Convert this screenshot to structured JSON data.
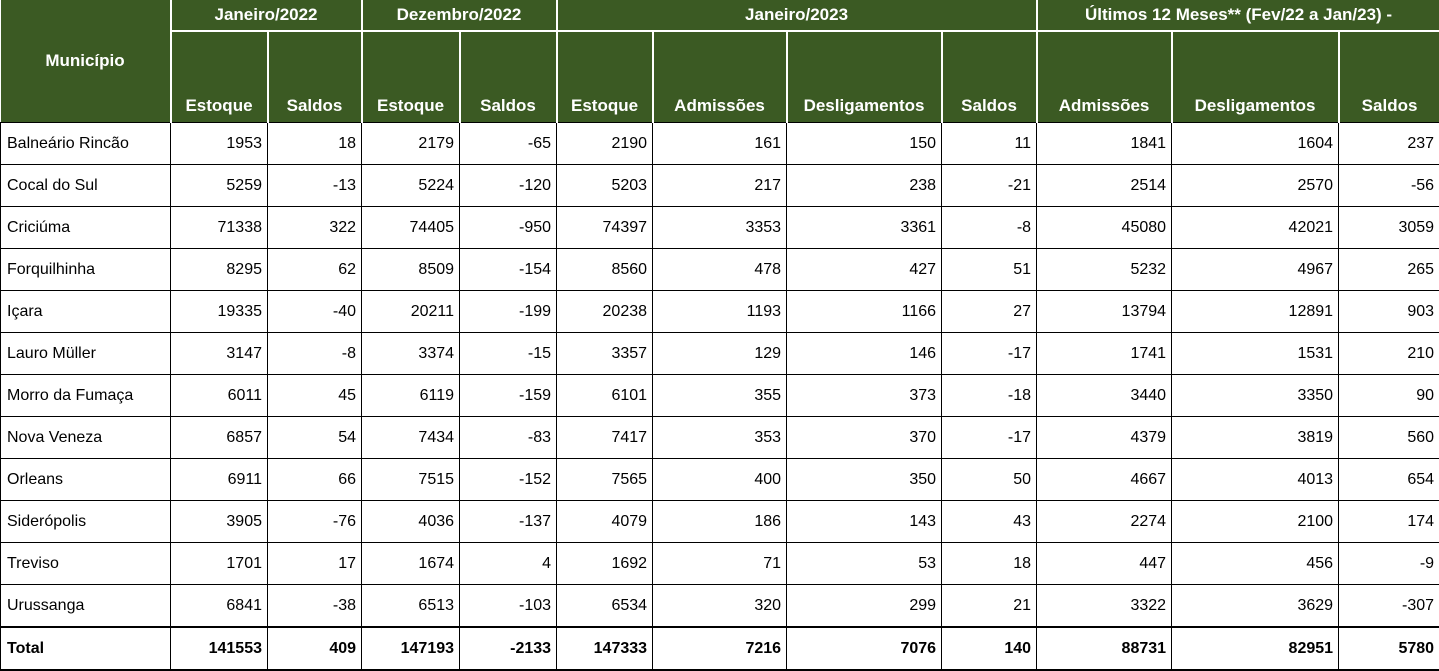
{
  "colors": {
    "header_bg": "#3B5A23",
    "header_text": "#FFFFFF",
    "grid_line": "#000000",
    "cell_bg": "#FFFFFF",
    "cell_text": "#000000"
  },
  "chart_data": {
    "type": "table",
    "corner_header": "Município",
    "column_groups": [
      {
        "label": "Janeiro/2022",
        "span": 2
      },
      {
        "label": "Dezembro/2022",
        "span": 2
      },
      {
        "label": "Janeiro/2023",
        "span": 4
      },
      {
        "label": "Últimos 12 Meses** (Fev/22 a Jan/23) -",
        "span": 3
      }
    ],
    "columns": [
      "Estoque",
      "Saldos",
      "Estoque",
      "Saldos",
      "Estoque",
      "Admissões",
      "Desligamentos",
      "Saldos",
      "Admissões",
      "Desligamentos",
      "Saldos"
    ],
    "rows": [
      {
        "municipio": "Balneário Rincão",
        "values": [
          1953,
          18,
          2179,
          -65,
          2190,
          161,
          150,
          11,
          1841,
          1604,
          237
        ]
      },
      {
        "municipio": "Cocal do Sul",
        "values": [
          5259,
          -13,
          5224,
          -120,
          5203,
          217,
          238,
          -21,
          2514,
          2570,
          -56
        ]
      },
      {
        "municipio": "Criciúma",
        "values": [
          71338,
          322,
          74405,
          -950,
          74397,
          3353,
          3361,
          -8,
          45080,
          42021,
          3059
        ]
      },
      {
        "municipio": "Forquilhinha",
        "values": [
          8295,
          62,
          8509,
          -154,
          8560,
          478,
          427,
          51,
          5232,
          4967,
          265
        ]
      },
      {
        "municipio": "Içara",
        "values": [
          19335,
          -40,
          20211,
          -199,
          20238,
          1193,
          1166,
          27,
          13794,
          12891,
          903
        ]
      },
      {
        "municipio": "Lauro Müller",
        "values": [
          3147,
          -8,
          3374,
          -15,
          3357,
          129,
          146,
          -17,
          1741,
          1531,
          210
        ]
      },
      {
        "municipio": "Morro da Fumaça",
        "values": [
          6011,
          45,
          6119,
          -159,
          6101,
          355,
          373,
          -18,
          3440,
          3350,
          90
        ]
      },
      {
        "municipio": "Nova Veneza",
        "values": [
          6857,
          54,
          7434,
          -83,
          7417,
          353,
          370,
          -17,
          4379,
          3819,
          560
        ]
      },
      {
        "municipio": "Orleans",
        "values": [
          6911,
          66,
          7515,
          -152,
          7565,
          400,
          350,
          50,
          4667,
          4013,
          654
        ]
      },
      {
        "municipio": "Siderópolis",
        "values": [
          3905,
          -76,
          4036,
          -137,
          4079,
          186,
          143,
          43,
          2274,
          2100,
          174
        ]
      },
      {
        "municipio": "Treviso",
        "values": [
          1701,
          17,
          1674,
          4,
          1692,
          71,
          53,
          18,
          447,
          456,
          -9
        ]
      },
      {
        "municipio": "Urussanga",
        "values": [
          6841,
          -38,
          6513,
          -103,
          6534,
          320,
          299,
          21,
          3322,
          3629,
          -307
        ]
      }
    ],
    "total_row": {
      "municipio": "Total",
      "values": [
        141553,
        409,
        147193,
        -2133,
        147333,
        7216,
        7076,
        140,
        88731,
        82951,
        5780
      ]
    }
  }
}
